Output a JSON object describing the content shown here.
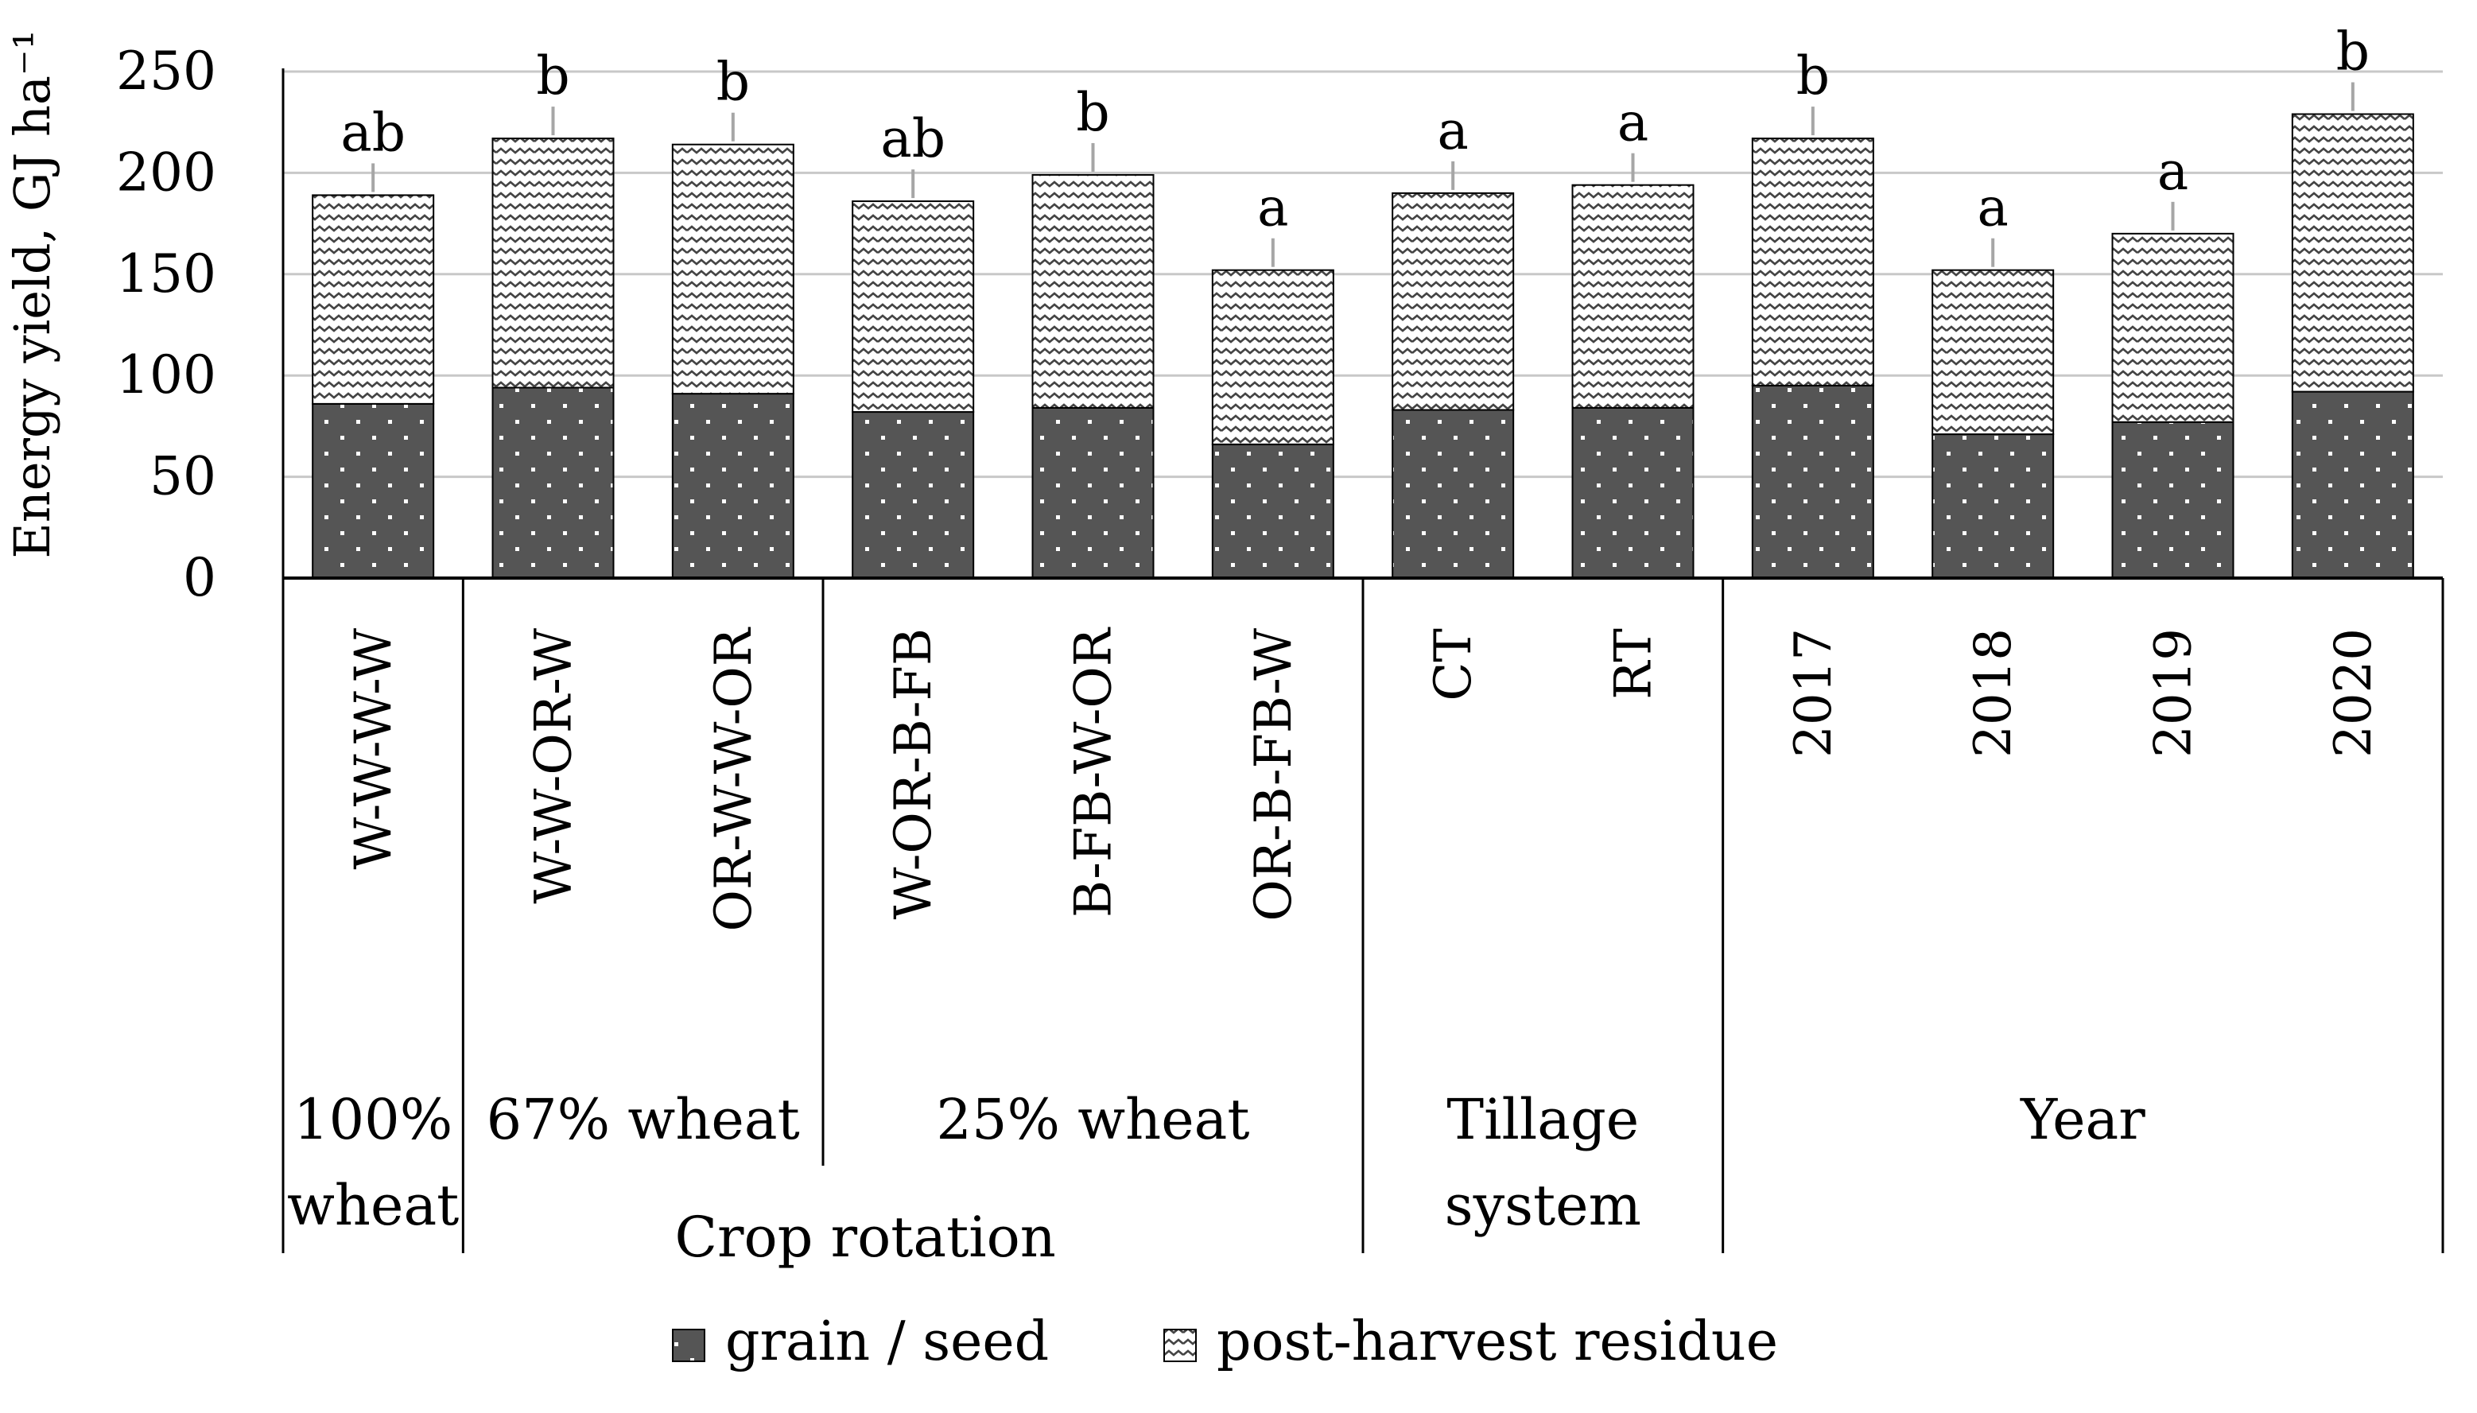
{
  "chart_data": {
    "type": "stacked-bar",
    "ylabel": "Energy yield, GJ ha⁻¹",
    "ylim": [
      0,
      250
    ],
    "yticks": [
      0,
      50,
      100,
      150,
      200,
      250
    ],
    "grid": true,
    "categories": [
      "W-W-W-W",
      "W-W-OR-W",
      "OR-W-W-OR",
      "W-OR-B-FB",
      "B-FB-W-OR",
      "OR-B-FB-W",
      "CT",
      "RT",
      "2017",
      "2018",
      "2019",
      "2020"
    ],
    "series": [
      {
        "name": "grain / seed",
        "values": [
          86,
          94,
          91,
          82,
          84,
          66,
          83,
          84,
          95,
          71,
          77,
          92
        ]
      },
      {
        "name": "post-harvest residue",
        "values": [
          103,
          123,
          123,
          104,
          115,
          86,
          107,
          110,
          122,
          81,
          93,
          137
        ]
      }
    ],
    "significance_letters": [
      "ab",
      "b",
      "b",
      "ab",
      "b",
      "a",
      "a",
      "a",
      "b",
      "a",
      "a",
      "b"
    ],
    "groups": [
      {
        "label": "100% wheat",
        "start": 0,
        "end": 0
      },
      {
        "label": "67% wheat",
        "start": 1,
        "end": 2
      },
      {
        "label": "25% wheat",
        "start": 3,
        "end": 5
      },
      {
        "label": "Tillage system",
        "start": 6,
        "end": 7
      },
      {
        "label": "Year",
        "start": 8,
        "end": 11
      }
    ],
    "supergroup": {
      "label": "Crop rotation",
      "start": 0,
      "end": 5
    },
    "legend": [
      {
        "name": "grain / seed",
        "pattern": "dots"
      },
      {
        "name": "post-harvest residue",
        "pattern": "waves"
      }
    ],
    "legend_position": "bottom"
  }
}
